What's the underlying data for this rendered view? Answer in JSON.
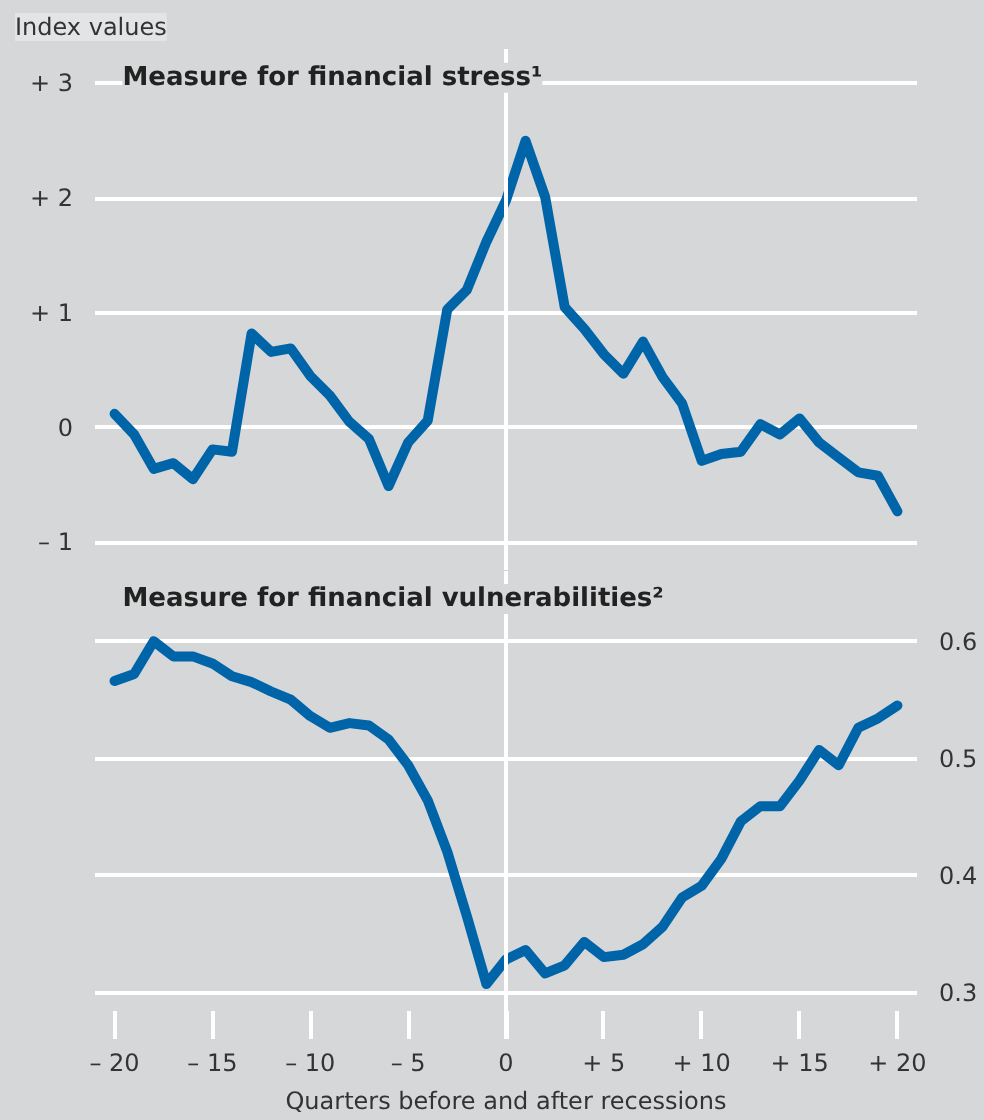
{
  "chart_data": [
    {
      "type": "line",
      "ylabel": "Index values",
      "title": "Measure for financial stress¹",
      "x": [
        -20,
        -19,
        -18,
        -17,
        -16,
        -15,
        -14,
        -13,
        -12,
        -11,
        -10,
        -9,
        -8,
        -7,
        -6,
        -5,
        -4,
        -3,
        -2,
        -1,
        0,
        1,
        2,
        3,
        4,
        5,
        6,
        7,
        8,
        9,
        10,
        11,
        12,
        13,
        14,
        15,
        16,
        17,
        18,
        19,
        20
      ],
      "series": [
        {
          "color": "#0064a8",
          "values": [
            0.12,
            -0.06,
            -0.36,
            -0.31,
            -0.45,
            -0.19,
            -0.21,
            0.82,
            0.66,
            0.69,
            0.45,
            0.28,
            0.05,
            -0.1,
            -0.51,
            -0.13,
            0.06,
            1.03,
            1.2,
            1.62,
            1.98,
            2.5,
            2.01,
            1.05,
            0.86,
            0.64,
            0.47,
            0.75,
            0.44,
            0.21,
            -0.29,
            -0.23,
            -0.21,
            0.03,
            -0.06,
            0.08,
            -0.13,
            -0.26,
            -0.39,
            -0.42,
            -0.73
          ]
        }
      ],
      "xlim": [
        -21,
        21
      ],
      "ylim": [
        -1.25,
        3.3
      ],
      "yticks": [
        {
          "value": 3,
          "label": "+ 3"
        },
        {
          "value": 2,
          "label": "+ 2"
        },
        {
          "value": 1,
          "label": "+ 1"
        },
        0,
        {
          "value": -1,
          "label": "– 1"
        }
      ],
      "ref_lines": [
        {
          "axis": "x",
          "value": 0,
          "color": "#ffffff"
        }
      ],
      "grid": "y",
      "tick_labels": "y",
      "line_style": "solid",
      "marker": "none"
    },
    {
      "type": "line",
      "title": "Measure for financial vulnerabilities²",
      "xlabel": "Quarters before and after recessions",
      "x": [
        -20,
        -19,
        -18,
        -17,
        -16,
        -15,
        -14,
        -13,
        -12,
        -11,
        -10,
        -9,
        -8,
        -7,
        -6,
        -5,
        -4,
        -3,
        -2,
        -1,
        0,
        1,
        2,
        3,
        4,
        5,
        6,
        7,
        8,
        9,
        10,
        11,
        12,
        13,
        14,
        15,
        16,
        17,
        18,
        19,
        20
      ],
      "series": [
        {
          "color": "#0064a8",
          "axis": "y2",
          "values": [
            0.566,
            0.572,
            0.6,
            0.587,
            0.587,
            0.581,
            0.57,
            0.565,
            0.557,
            0.55,
            0.536,
            0.526,
            0.53,
            0.528,
            0.516,
            0.494,
            0.464,
            0.42,
            0.365,
            0.307,
            0.328,
            0.336,
            0.316,
            0.323,
            0.343,
            0.33,
            0.332,
            0.341,
            0.356,
            0.381,
            0.391,
            0.414,
            0.446,
            0.459,
            0.459,
            0.481,
            0.507,
            0.494,
            0.526,
            0.534,
            0.545
          ]
        }
      ],
      "xlim": [
        -21,
        21
      ],
      "xticks": [
        {
          "value": -20,
          "label": "– 20"
        },
        {
          "value": -15,
          "label": "– 15"
        },
        {
          "value": -10,
          "label": "– 10"
        },
        {
          "value": -5,
          "label": "– 5"
        },
        0,
        {
          "value": 5,
          "label": "+ 5"
        },
        {
          "value": 10,
          "label": "+ 10"
        },
        {
          "value": 15,
          "label": "+ 15"
        },
        {
          "value": 20,
          "label": "+ 20"
        }
      ],
      "y2lim": [
        0.26,
        0.66
      ],
      "y2ticks": [
        0.6,
        0.5,
        0.4,
        0.3
      ],
      "ref_lines": [
        {
          "axis": "x",
          "value": 0,
          "color": "#ffffff"
        }
      ],
      "grid": "y",
      "line_style": "solid",
      "marker": "none"
    }
  ]
}
